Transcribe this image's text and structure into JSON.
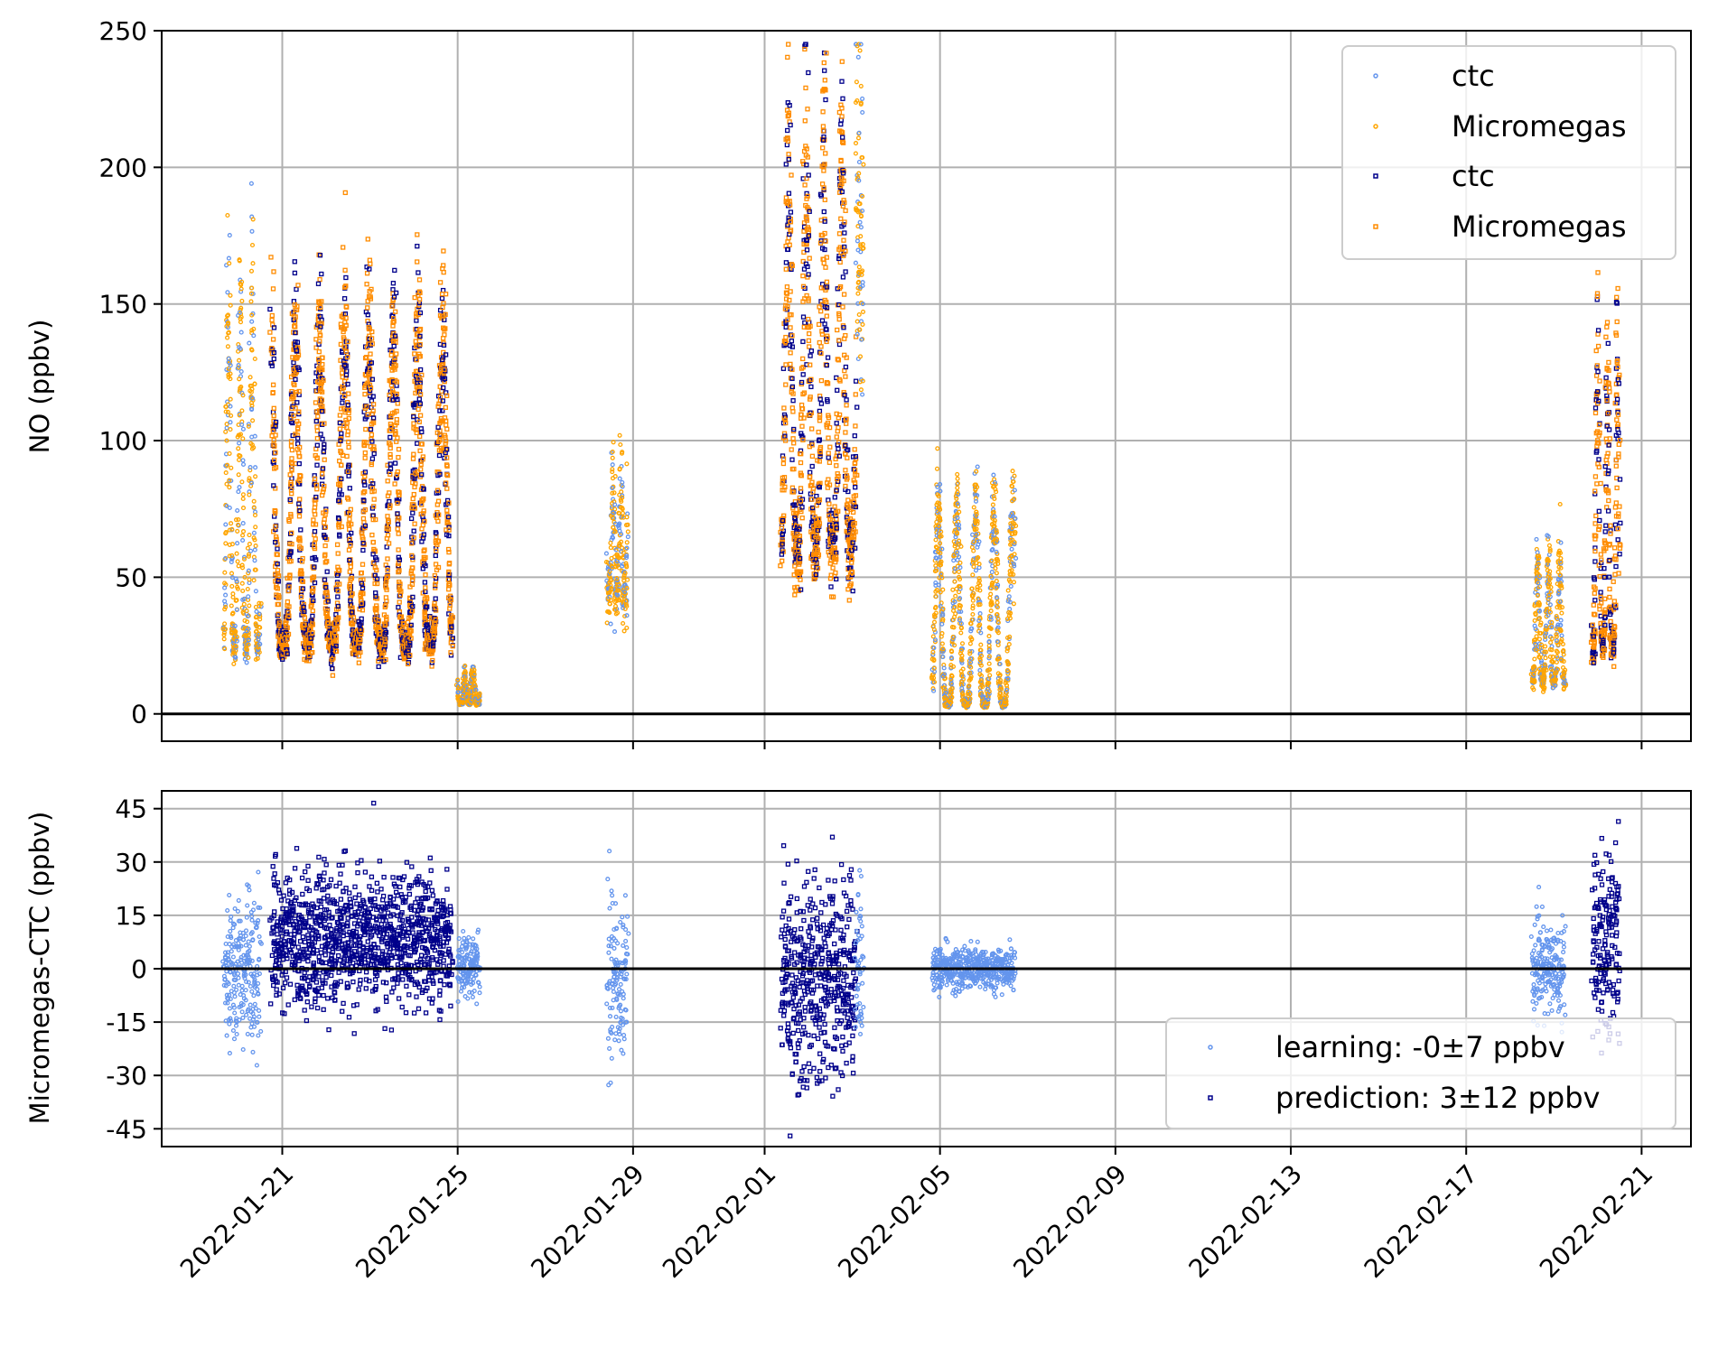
{
  "chart_data": [
    {
      "type": "scatter",
      "ylabel": "NO (ppbv)",
      "ylim": [
        -10,
        250
      ],
      "yticks": [
        "0",
        "50",
        "100",
        "150",
        "200",
        "250"
      ],
      "grid": true,
      "legend_position": "upper-right",
      "colors": {
        "ctc_learning": "#6495ed",
        "micromegas_learning": "#ffa500",
        "ctc_prediction": "#00008b",
        "micromegas_prediction": "#ff8c00"
      },
      "series": [
        {
          "name": "ctc",
          "color": "#6495ed",
          "marker": "circle-open-small"
        },
        {
          "name": "Micromegas",
          "color": "#ffa500",
          "marker": "circle-open-small"
        },
        {
          "name": "ctc",
          "color": "#00008b",
          "marker": "square-open"
        },
        {
          "name": "Micromegas",
          "color": "#ff8c00",
          "marker": "square-open"
        }
      ],
      "segments": [
        {
          "start": "2022-01-19 16:00",
          "end": "2022-01-20 12:00",
          "role": "learning",
          "peak": 150,
          "base": 25
        },
        {
          "start": "2022-01-20 18:00",
          "end": "2022-01-24 21:00",
          "role": "prediction",
          "peak": 140,
          "base": 25
        },
        {
          "start": "2022-01-25 00:00",
          "end": "2022-01-25 12:00",
          "role": "learning",
          "peak": 15,
          "base": 4
        },
        {
          "start": "2022-01-28 10:00",
          "end": "2022-01-28 21:00",
          "role": "learning",
          "peak": 85,
          "base": 45
        },
        {
          "start": "2022-02-01 09:00",
          "end": "2022-02-03 02:00",
          "role": "prediction",
          "peak": 200,
          "base": 60
        },
        {
          "start": "2022-02-03 02:00",
          "end": "2022-02-03 06:00",
          "role": "learning",
          "peak": 220,
          "base": 150
        },
        {
          "start": "2022-02-04 20:00",
          "end": "2022-02-06 17:00",
          "role": "learning",
          "peak": 75,
          "base": 3
        },
        {
          "start": "2022-02-18 12:00",
          "end": "2022-02-19 06:00",
          "role": "learning",
          "peak": 55,
          "base": 12
        },
        {
          "start": "2022-02-19 21:00",
          "end": "2022-02-20 12:00",
          "role": "prediction",
          "peak": 130,
          "base": 25
        }
      ]
    },
    {
      "type": "scatter",
      "ylabel": "Micromegas-CTC (ppbv)",
      "ylim": [
        -50,
        50
      ],
      "yticks": [
        "-45",
        "-30",
        "-15",
        "0",
        "15",
        "30",
        "45"
      ],
      "xticks": [
        "2022-01-21",
        "2022-01-25",
        "2022-01-29",
        "2022-02-01",
        "2022-02-05",
        "2022-02-09",
        "2022-02-13",
        "2022-02-17",
        "2022-02-21"
      ],
      "grid": true,
      "legend_position": "lower-right",
      "series": [
        {
          "name": "learning: -0±7 ppbv",
          "color": "#6495ed",
          "marker": "circle-open-small"
        },
        {
          "name": "prediction: 3±12 ppbv",
          "color": "#00008b",
          "marker": "square-open"
        }
      ],
      "segments": [
        {
          "start": "2022-01-19 16:00",
          "end": "2022-01-20 12:00",
          "role": "learning",
          "mean": 0,
          "spread": 10
        },
        {
          "start": "2022-01-20 18:00",
          "end": "2022-01-24 21:00",
          "role": "prediction",
          "mean": 8,
          "spread": 9
        },
        {
          "start": "2022-01-25 00:00",
          "end": "2022-01-25 12:00",
          "role": "learning",
          "mean": 1,
          "spread": 4
        },
        {
          "start": "2022-01-28 10:00",
          "end": "2022-01-28 21:00",
          "role": "learning",
          "mean": -2,
          "spread": 12
        },
        {
          "start": "2022-02-01 09:00",
          "end": "2022-02-03 02:00",
          "role": "prediction",
          "mean": -3,
          "spread": 14
        },
        {
          "start": "2022-02-03 02:00",
          "end": "2022-02-03 06:00",
          "role": "learning",
          "mean": 3,
          "spread": 12
        },
        {
          "start": "2022-02-04 20:00",
          "end": "2022-02-06 17:00",
          "role": "learning",
          "mean": 0,
          "spread": 3
        },
        {
          "start": "2022-02-18 12:00",
          "end": "2022-02-19 06:00",
          "role": "learning",
          "mean": 0,
          "spread": 6
        },
        {
          "start": "2022-02-19 21:00",
          "end": "2022-02-20 12:00",
          "role": "prediction",
          "mean": 8,
          "spread": 14
        }
      ]
    }
  ]
}
